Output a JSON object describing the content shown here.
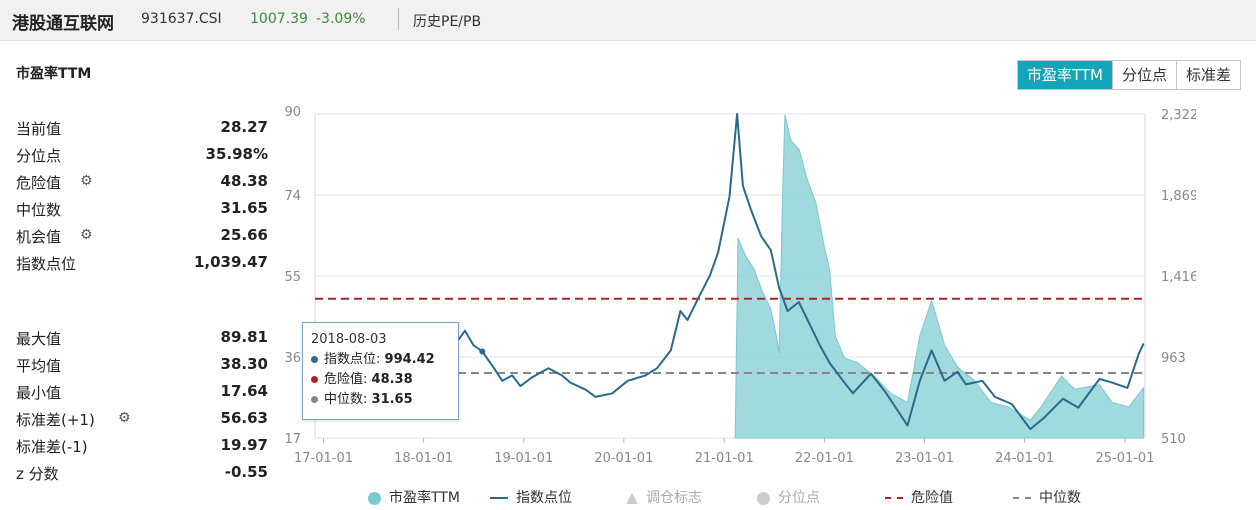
{
  "header": {
    "index_name": "港股通互联网",
    "code": "931637.CSI",
    "price": "1007.39",
    "change": "-3.09%",
    "tab_label": "历史PE/PB"
  },
  "panel": {
    "title": "市盈率TTM",
    "buttons": [
      "市盈率TTM",
      "分位点",
      "标准差"
    ],
    "active_button": 0
  },
  "stats": [
    {
      "label": "当前值",
      "value": "28.27",
      "gear": false
    },
    {
      "label": "分位点",
      "value": "35.98%",
      "gear": false
    },
    {
      "label": "危险值",
      "value": "48.38",
      "gear": true
    },
    {
      "label": "中位数",
      "value": "31.65",
      "gear": false
    },
    {
      "label": "机会值",
      "value": "25.66",
      "gear": true
    },
    {
      "label": "指数点位",
      "value": "1,039.47",
      "gear": false
    },
    {
      "label": "最大值",
      "value": "89.81",
      "gear": false
    },
    {
      "label": "平均值",
      "value": "38.30",
      "gear": false
    },
    {
      "label": "最小值",
      "value": "17.64",
      "gear": false
    },
    {
      "label": "标准差(+1)",
      "value": "56.63",
      "gear": true
    },
    {
      "label": "标准差(-1)",
      "value": "19.97",
      "gear": false
    },
    {
      "label": "z 分数",
      "value": "-0.55",
      "gear": false
    }
  ],
  "tooltip": {
    "date": "2018-08-03",
    "rows": [
      {
        "label": "指数点位:",
        "value": "994.42",
        "color": "#2a6a8c"
      },
      {
        "label": "危险值:",
        "value": "48.38",
        "color": "#b22222"
      },
      {
        "label": "中位数:",
        "value": "31.65",
        "color": "#888888"
      }
    ]
  },
  "legend": [
    {
      "label": "市盈率TTM",
      "kind": "circle",
      "color": "#7cc8d0",
      "enabled": true
    },
    {
      "label": "指数点位",
      "kind": "line",
      "color": "#2a6a8c",
      "enabled": true
    },
    {
      "label": "调仓标志",
      "kind": "triangle",
      "color": "#cccccc",
      "enabled": false
    },
    {
      "label": "分位点",
      "kind": "circle",
      "color": "#cccccc",
      "enabled": false
    },
    {
      "label": "危险值",
      "kind": "dash",
      "color": "#b22222",
      "enabled": true
    },
    {
      "label": "中位数",
      "kind": "dash",
      "color": "#888888",
      "enabled": true
    }
  ],
  "colors": {
    "pe_fill": "#8fd2d8",
    "pe_line": "#7cc8d0",
    "index_line": "#2a6a8c",
    "danger": "#b22222",
    "median": "#888888",
    "accent": "#15a5bb"
  },
  "chart_data": {
    "type": "line",
    "x_ticks": [
      "17-01-01",
      "18-01-01",
      "19-01-01",
      "20-01-01",
      "21-01-01",
      "22-01-01",
      "23-01-01",
      "24-01-01",
      "25-01-01"
    ],
    "y_left_ticks": [
      "90",
      "74",
      "55",
      "36",
      "17"
    ],
    "y_left_range": [
      17,
      90
    ],
    "y_right_ticks": [
      "2,322",
      "1,869",
      "1,416",
      "963",
      "510"
    ],
    "y_right_range": [
      510,
      2322
    ],
    "x_range": [
      "2016-12-01",
      "2025-03-15"
    ],
    "reference_lines": [
      {
        "name": "危险值",
        "value": 48.38,
        "axis": "left"
      },
      {
        "name": "中位数",
        "value": 31.65,
        "axis": "left"
      }
    ],
    "series": [
      {
        "name": "指数点位",
        "axis": "right",
        "points": [
          [
            "2017-01-01",
            690
          ],
          [
            "2017-03-01",
            760
          ],
          [
            "2017-05-01",
            840
          ],
          [
            "2017-07-01",
            940
          ],
          [
            "2017-09-01",
            1010
          ],
          [
            "2017-11-01",
            1000
          ],
          [
            "2017-12-01",
            1070
          ],
          [
            "2018-01-20",
            1120
          ],
          [
            "2018-02-10",
            1060
          ],
          [
            "2018-03-10",
            1130
          ],
          [
            "2018-04-20",
            1020
          ],
          [
            "2018-06-01",
            1110
          ],
          [
            "2018-07-01",
            1030
          ],
          [
            "2018-08-03",
            994
          ],
          [
            "2018-09-15",
            900
          ],
          [
            "2018-10-15",
            830
          ],
          [
            "2018-11-20",
            860
          ],
          [
            "2018-12-20",
            800
          ],
          [
            "2019-02-01",
            850
          ],
          [
            "2019-04-01",
            900
          ],
          [
            "2019-05-20",
            860
          ],
          [
            "2019-06-20",
            820
          ],
          [
            "2019-08-15",
            780
          ],
          [
            "2019-09-20",
            740
          ],
          [
            "2019-11-20",
            760
          ],
          [
            "2020-01-15",
            830
          ],
          [
            "2020-03-20",
            860
          ],
          [
            "2020-05-01",
            900
          ],
          [
            "2020-06-20",
            1000
          ],
          [
            "2020-07-25",
            1220
          ],
          [
            "2020-08-20",
            1170
          ],
          [
            "2020-10-01",
            1300
          ],
          [
            "2020-11-10",
            1420
          ],
          [
            "2020-12-10",
            1550
          ],
          [
            "2021-01-20",
            1860
          ],
          [
            "2021-02-17",
            2322
          ],
          [
            "2021-03-10",
            1920
          ],
          [
            "2021-04-10",
            1780
          ],
          [
            "2021-05-15",
            1640
          ],
          [
            "2021-06-20",
            1560
          ],
          [
            "2021-07-20",
            1350
          ],
          [
            "2021-08-20",
            1220
          ],
          [
            "2021-09-30",
            1270
          ],
          [
            "2021-11-01",
            1170
          ],
          [
            "2021-12-15",
            1030
          ],
          [
            "2022-01-20",
            930
          ],
          [
            "2022-03-15",
            820
          ],
          [
            "2022-04-15",
            760
          ],
          [
            "2022-06-20",
            870
          ],
          [
            "2022-08-15",
            760
          ],
          [
            "2022-10-31",
            580
          ],
          [
            "2022-12-15",
            830
          ],
          [
            "2023-01-27",
            1000
          ],
          [
            "2023-03-15",
            830
          ],
          [
            "2023-05-01",
            880
          ],
          [
            "2023-06-01",
            810
          ],
          [
            "2023-07-31",
            830
          ],
          [
            "2023-09-15",
            740
          ],
          [
            "2023-11-15",
            700
          ],
          [
            "2024-01-22",
            560
          ],
          [
            "2024-03-10",
            620
          ],
          [
            "2024-05-20",
            730
          ],
          [
            "2024-07-15",
            680
          ],
          [
            "2024-09-30",
            840
          ],
          [
            "2024-11-15",
            820
          ],
          [
            "2025-01-10",
            790
          ],
          [
            "2025-02-20",
            980
          ],
          [
            "2025-03-10",
            1039
          ]
        ]
      },
      {
        "name": "市盈率TTM",
        "axis": "left",
        "points": [
          [
            "2021-02-10",
            17.6
          ],
          [
            "2021-02-20",
            62.0
          ],
          [
            "2021-03-20",
            58.0
          ],
          [
            "2021-04-20",
            55.0
          ],
          [
            "2021-05-20",
            50.0
          ],
          [
            "2021-06-20",
            46.0
          ],
          [
            "2021-07-10",
            40.0
          ],
          [
            "2021-07-20",
            36.0
          ],
          [
            "2021-08-01",
            70.0
          ],
          [
            "2021-08-10",
            89.8
          ],
          [
            "2021-09-01",
            84.0
          ],
          [
            "2021-10-01",
            82.0
          ],
          [
            "2021-11-01",
            75.0
          ],
          [
            "2021-12-01",
            70.0
          ],
          [
            "2022-01-01",
            60.0
          ],
          [
            "2022-01-20",
            55.0
          ],
          [
            "2022-02-10",
            40.0
          ],
          [
            "2022-03-15",
            35.0
          ],
          [
            "2022-05-01",
            34.0
          ],
          [
            "2022-07-01",
            31.0
          ],
          [
            "2022-09-01",
            27.0
          ],
          [
            "2022-10-31",
            25.0
          ],
          [
            "2022-12-15",
            40.0
          ],
          [
            "2023-01-27",
            48.0
          ],
          [
            "2023-03-15",
            38.0
          ],
          [
            "2023-05-01",
            33.0
          ],
          [
            "2023-07-01",
            30.0
          ],
          [
            "2023-09-01",
            25.0
          ],
          [
            "2023-11-01",
            24.0
          ],
          [
            "2024-01-22",
            21.0
          ],
          [
            "2024-03-01",
            24.0
          ],
          [
            "2024-05-15",
            31.0
          ],
          [
            "2024-07-01",
            28.0
          ],
          [
            "2024-09-30",
            29.0
          ],
          [
            "2024-11-15",
            25.0
          ],
          [
            "2025-01-15",
            24.0
          ],
          [
            "2025-03-10",
            28.3
          ]
        ]
      }
    ]
  }
}
